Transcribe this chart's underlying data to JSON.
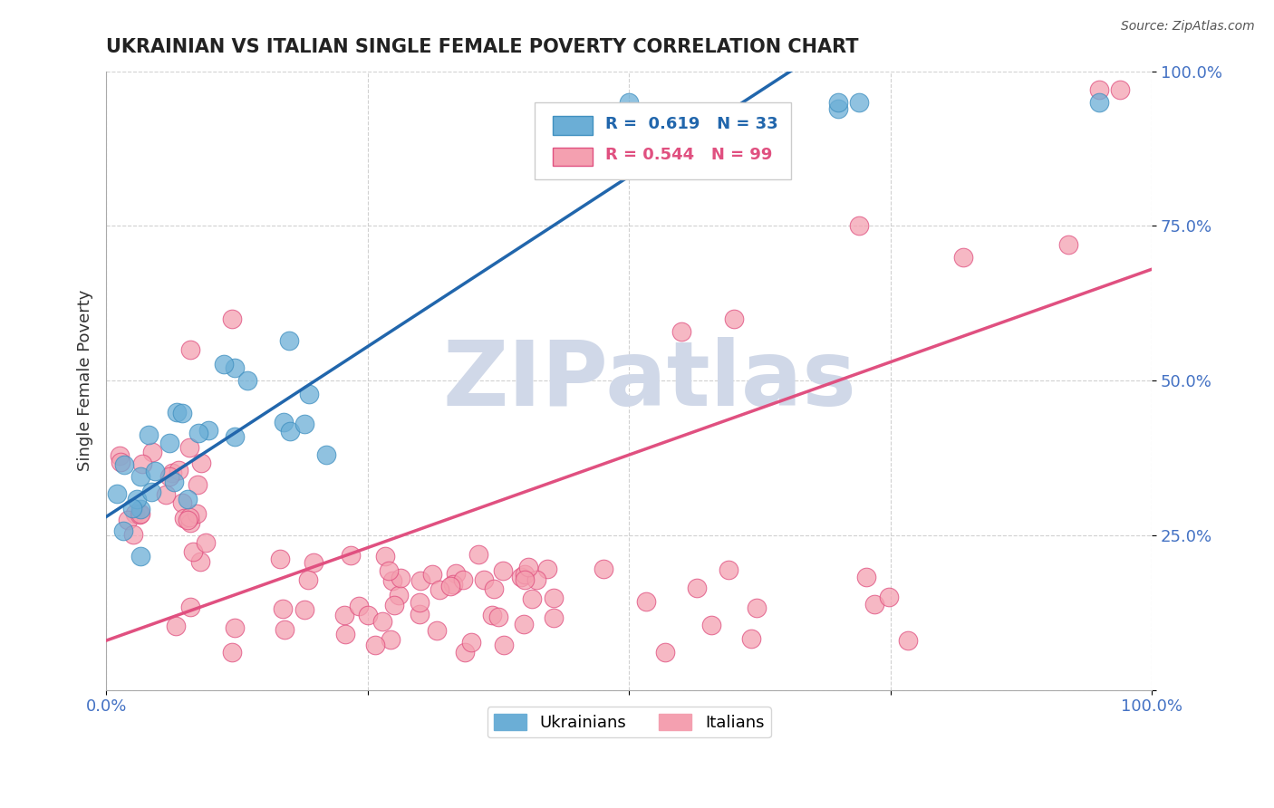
{
  "title": "UKRAINIAN VS ITALIAN SINGLE FEMALE POVERTY CORRELATION CHART",
  "source": "Source: ZipAtlas.com",
  "ylabel": "Single Female Poverty",
  "xlim": [
    0.0,
    1.0
  ],
  "ylim": [
    0.0,
    1.0
  ],
  "xticks": [
    0.0,
    0.25,
    0.5,
    0.75,
    1.0
  ],
  "xticklabels": [
    "0.0%",
    "",
    "",
    "",
    "100.0%"
  ],
  "ytick_positions": [
    0.0,
    0.25,
    0.5,
    0.75,
    1.0
  ],
  "ytick_labels_right": [
    "",
    "25.0%",
    "50.0%",
    "75.0%",
    "100.0%"
  ],
  "ukrainian_color": "#6baed6",
  "ukrainian_edge": "#4090c0",
  "italian_color": "#f4a0b0",
  "italian_edge": "#e05080",
  "blue_line_color": "#2166ac",
  "pink_line_color": "#e05080",
  "legend_R_ukrainian": "R =  0.619",
  "legend_N_ukrainian": "N = 33",
  "legend_R_italian": "R = 0.544",
  "legend_N_italian": "N = 99",
  "ukr_slope": 1.1,
  "ukr_intercept": 0.28,
  "ita_slope": 0.6,
  "ita_intercept": 0.08,
  "background_color": "#ffffff",
  "grid_color": "#cccccc",
  "watermark_text": "ZIPatlas",
  "watermark_color": "#d0d8e8",
  "tick_color": "#4472c4",
  "title_color": "#222222",
  "source_color": "#555555"
}
